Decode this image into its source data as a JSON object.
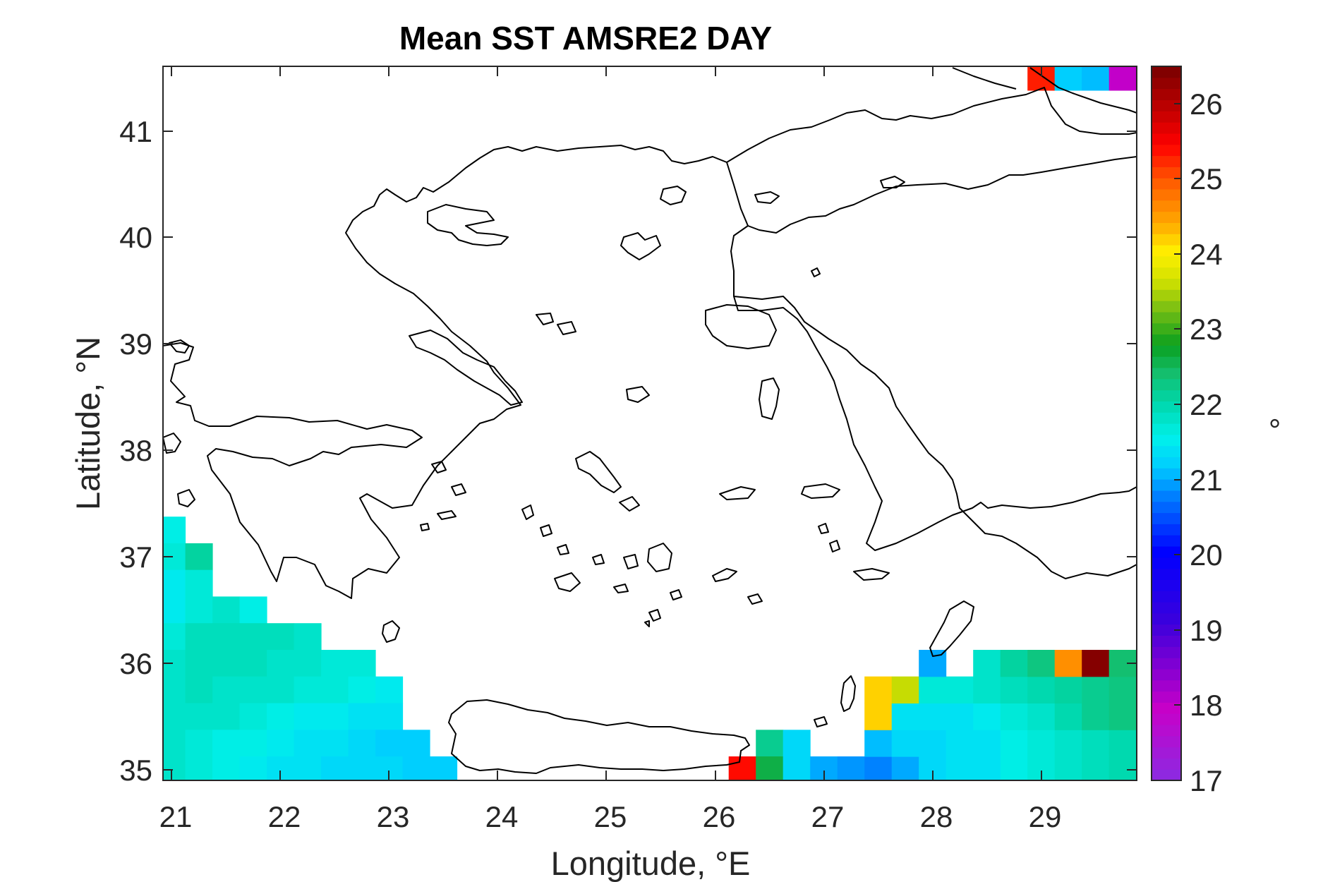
{
  "chart_data": {
    "type": "heatmap",
    "title": "Mean SST AMSRE2 DAY",
    "xlabel": "Longitude, °E",
    "ylabel": "Latitude, °N",
    "xlim": [
      20.92,
      29.88
    ],
    "ylim": [
      34.9,
      41.6
    ],
    "xticks": [
      "21",
      "22",
      "23",
      "24",
      "25",
      "26",
      "27",
      "28",
      "29"
    ],
    "yticks": [
      "35",
      "36",
      "37",
      "38",
      "39",
      "40",
      "41"
    ],
    "cell_size_deg": 0.25,
    "colorbar": {
      "label": "°",
      "min": 17,
      "max": 26.5,
      "ticks": [
        "17",
        "18",
        "19",
        "20",
        "21",
        "22",
        "23",
        "24",
        "25",
        "26"
      ]
    },
    "cells": [
      {
        "lon": 21.0,
        "lat": 37.25,
        "sst": 21.6
      },
      {
        "lon": 21.0,
        "lat": 37.0,
        "sst": 21.7
      },
      {
        "lon": 21.25,
        "lat": 37.0,
        "sst": 22.1
      },
      {
        "lon": 21.0,
        "lat": 36.75,
        "sst": 21.5
      },
      {
        "lon": 21.25,
        "lat": 36.75,
        "sst": 21.7
      },
      {
        "lon": 21.0,
        "lat": 36.5,
        "sst": 21.5
      },
      {
        "lon": 21.25,
        "lat": 36.5,
        "sst": 21.7
      },
      {
        "lon": 21.5,
        "lat": 36.5,
        "sst": 21.8
      },
      {
        "lon": 21.75,
        "lat": 36.5,
        "sst": 21.6
      },
      {
        "lon": 21.0,
        "lat": 36.25,
        "sst": 21.7
      },
      {
        "lon": 21.25,
        "lat": 36.25,
        "sst": 21.9
      },
      {
        "lon": 21.5,
        "lat": 36.25,
        "sst": 21.9
      },
      {
        "lon": 21.75,
        "lat": 36.25,
        "sst": 21.9
      },
      {
        "lon": 22.0,
        "lat": 36.25,
        "sst": 21.9
      },
      {
        "lon": 22.25,
        "lat": 36.25,
        "sst": 21.8
      },
      {
        "lon": 21.0,
        "lat": 36.0,
        "sst": 21.8
      },
      {
        "lon": 21.25,
        "lat": 36.0,
        "sst": 21.9
      },
      {
        "lon": 21.5,
        "lat": 36.0,
        "sst": 21.9
      },
      {
        "lon": 21.75,
        "lat": 36.0,
        "sst": 21.9
      },
      {
        "lon": 22.0,
        "lat": 36.0,
        "sst": 21.8
      },
      {
        "lon": 22.25,
        "lat": 36.0,
        "sst": 21.8
      },
      {
        "lon": 22.5,
        "lat": 36.0,
        "sst": 21.7
      },
      {
        "lon": 22.75,
        "lat": 36.0,
        "sst": 21.7
      },
      {
        "lon": 21.0,
        "lat": 35.75,
        "sst": 21.8
      },
      {
        "lon": 21.25,
        "lat": 35.75,
        "sst": 21.9
      },
      {
        "lon": 21.5,
        "lat": 35.75,
        "sst": 21.8
      },
      {
        "lon": 21.75,
        "lat": 35.75,
        "sst": 21.8
      },
      {
        "lon": 22.0,
        "lat": 35.75,
        "sst": 21.8
      },
      {
        "lon": 22.25,
        "lat": 35.75,
        "sst": 21.7
      },
      {
        "lon": 22.5,
        "lat": 35.75,
        "sst": 21.7
      },
      {
        "lon": 22.75,
        "lat": 35.75,
        "sst": 21.6
      },
      {
        "lon": 23.0,
        "lat": 35.75,
        "sst": 21.5
      },
      {
        "lon": 21.0,
        "lat": 35.5,
        "sst": 21.8
      },
      {
        "lon": 21.25,
        "lat": 35.5,
        "sst": 21.8
      },
      {
        "lon": 21.5,
        "lat": 35.5,
        "sst": 21.8
      },
      {
        "lon": 21.75,
        "lat": 35.5,
        "sst": 21.7
      },
      {
        "lon": 22.0,
        "lat": 35.5,
        "sst": 21.6
      },
      {
        "lon": 22.25,
        "lat": 35.5,
        "sst": 21.5
      },
      {
        "lon": 22.5,
        "lat": 35.5,
        "sst": 21.5
      },
      {
        "lon": 22.75,
        "lat": 35.5,
        "sst": 21.4
      },
      {
        "lon": 23.0,
        "lat": 35.5,
        "sst": 21.4
      },
      {
        "lon": 21.0,
        "lat": 35.25,
        "sst": 21.8
      },
      {
        "lon": 21.25,
        "lat": 35.25,
        "sst": 21.7
      },
      {
        "lon": 21.5,
        "lat": 35.25,
        "sst": 21.6
      },
      {
        "lon": 21.75,
        "lat": 35.25,
        "sst": 21.6
      },
      {
        "lon": 22.0,
        "lat": 35.25,
        "sst": 21.5
      },
      {
        "lon": 22.25,
        "lat": 35.25,
        "sst": 21.4
      },
      {
        "lon": 22.5,
        "lat": 35.25,
        "sst": 21.4
      },
      {
        "lon": 22.75,
        "lat": 35.25,
        "sst": 21.3
      },
      {
        "lon": 23.0,
        "lat": 35.25,
        "sst": 21.2
      },
      {
        "lon": 23.25,
        "lat": 35.25,
        "sst": 21.2
      },
      {
        "lon": 21.0,
        "lat": 35.0,
        "sst": 21.8
      },
      {
        "lon": 21.25,
        "lat": 35.0,
        "sst": 21.7
      },
      {
        "lon": 21.5,
        "lat": 35.0,
        "sst": 21.6
      },
      {
        "lon": 21.75,
        "lat": 35.0,
        "sst": 21.5
      },
      {
        "lon": 22.0,
        "lat": 35.0,
        "sst": 21.4
      },
      {
        "lon": 22.25,
        "lat": 35.0,
        "sst": 21.4
      },
      {
        "lon": 22.5,
        "lat": 35.0,
        "sst": 21.3
      },
      {
        "lon": 22.75,
        "lat": 35.0,
        "sst": 21.3
      },
      {
        "lon": 23.0,
        "lat": 35.0,
        "sst": 21.3
      },
      {
        "lon": 23.25,
        "lat": 35.0,
        "sst": 21.2
      },
      {
        "lon": 23.5,
        "lat": 35.0,
        "sst": 21.2
      },
      {
        "lon": 26.5,
        "lat": 35.25,
        "sst": 22.2
      },
      {
        "lon": 26.75,
        "lat": 35.25,
        "sst": 21.3
      },
      {
        "lon": 26.25,
        "lat": 35.0,
        "sst": 25.4
      },
      {
        "lon": 26.5,
        "lat": 35.0,
        "sst": 22.6
      },
      {
        "lon": 26.75,
        "lat": 35.0,
        "sst": 21.3
      },
      {
        "lon": 27.0,
        "lat": 35.0,
        "sst": 21.0
      },
      {
        "lon": 27.25,
        "lat": 35.0,
        "sst": 20.9
      },
      {
        "lon": 27.5,
        "lat": 35.0,
        "sst": 20.8
      },
      {
        "lon": 27.75,
        "lat": 35.0,
        "sst": 21.0
      },
      {
        "lon": 28.0,
        "lat": 35.0,
        "sst": 21.3
      },
      {
        "lon": 28.25,
        "lat": 35.0,
        "sst": 21.4
      },
      {
        "lon": 28.5,
        "lat": 35.0,
        "sst": 21.4
      },
      {
        "lon": 28.75,
        "lat": 35.0,
        "sst": 21.6
      },
      {
        "lon": 29.0,
        "lat": 35.0,
        "sst": 21.7
      },
      {
        "lon": 29.25,
        "lat": 35.0,
        "sst": 21.8
      },
      {
        "lon": 29.5,
        "lat": 35.0,
        "sst": 21.9
      },
      {
        "lon": 29.75,
        "lat": 35.0,
        "sst": 22.0
      },
      {
        "lon": 27.5,
        "lat": 35.25,
        "sst": 21.1
      },
      {
        "lon": 27.75,
        "lat": 35.25,
        "sst": 21.3
      },
      {
        "lon": 28.0,
        "lat": 35.25,
        "sst": 21.3
      },
      {
        "lon": 28.25,
        "lat": 35.25,
        "sst": 21.4
      },
      {
        "lon": 28.5,
        "lat": 35.25,
        "sst": 21.4
      },
      {
        "lon": 28.75,
        "lat": 35.25,
        "sst": 21.6
      },
      {
        "lon": 29.0,
        "lat": 35.25,
        "sst": 21.7
      },
      {
        "lon": 29.25,
        "lat": 35.25,
        "sst": 21.8
      },
      {
        "lon": 29.5,
        "lat": 35.25,
        "sst": 21.9
      },
      {
        "lon": 29.75,
        "lat": 35.25,
        "sst": 22.0
      },
      {
        "lon": 27.5,
        "lat": 35.5,
        "sst": 24.2
      },
      {
        "lon": 27.75,
        "lat": 35.5,
        "sst": 21.4
      },
      {
        "lon": 28.0,
        "lat": 35.5,
        "sst": 21.4
      },
      {
        "lon": 28.25,
        "lat": 35.5,
        "sst": 21.4
      },
      {
        "lon": 28.5,
        "lat": 35.5,
        "sst": 21.5
      },
      {
        "lon": 28.75,
        "lat": 35.5,
        "sst": 21.7
      },
      {
        "lon": 29.0,
        "lat": 35.5,
        "sst": 21.8
      },
      {
        "lon": 29.25,
        "lat": 35.5,
        "sst": 22.0
      },
      {
        "lon": 29.5,
        "lat": 35.5,
        "sst": 22.2
      },
      {
        "lon": 29.75,
        "lat": 35.5,
        "sst": 22.3
      },
      {
        "lon": 27.5,
        "lat": 35.75,
        "sst": 24.2
      },
      {
        "lon": 27.75,
        "lat": 35.75,
        "sst": 23.6
      },
      {
        "lon": 28.0,
        "lat": 35.75,
        "sst": 21.7
      },
      {
        "lon": 28.25,
        "lat": 35.75,
        "sst": 21.7
      },
      {
        "lon": 28.5,
        "lat": 35.75,
        "sst": 21.8
      },
      {
        "lon": 28.75,
        "lat": 35.75,
        "sst": 21.9
      },
      {
        "lon": 29.0,
        "lat": 35.75,
        "sst": 22.0
      },
      {
        "lon": 29.25,
        "lat": 35.75,
        "sst": 22.1
      },
      {
        "lon": 29.5,
        "lat": 35.75,
        "sst": 22.2
      },
      {
        "lon": 29.75,
        "lat": 35.75,
        "sst": 22.3
      },
      {
        "lon": 28.0,
        "lat": 36.0,
        "sst": 21.0
      },
      {
        "lon": 28.5,
        "lat": 36.0,
        "sst": 21.8
      },
      {
        "lon": 28.75,
        "lat": 36.0,
        "sst": 22.1
      },
      {
        "lon": 29.0,
        "lat": 36.0,
        "sst": 22.3
      },
      {
        "lon": 29.25,
        "lat": 36.0,
        "sst": 24.6
      },
      {
        "lon": 29.5,
        "lat": 36.0,
        "sst": 26.4
      },
      {
        "lon": 29.75,
        "lat": 36.0,
        "sst": 22.4
      },
      {
        "lon": 29.0,
        "lat": 41.5,
        "sst": 25.3
      },
      {
        "lon": 29.25,
        "lat": 41.5,
        "sst": 21.2
      },
      {
        "lon": 29.5,
        "lat": 41.5,
        "sst": 21.1
      },
      {
        "lon": 29.75,
        "lat": 41.5,
        "sst": 18.0
      }
    ]
  }
}
